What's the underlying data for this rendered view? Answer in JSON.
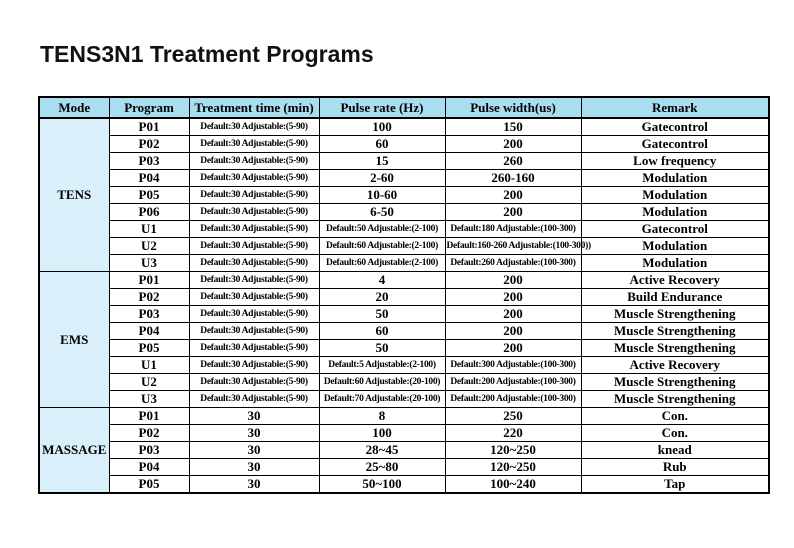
{
  "page": {
    "title": "TENS3N1 Treatment Programs"
  },
  "colors": {
    "header_bg": "#a9def1",
    "mode_bg": "#d9f0fa",
    "border": "#000000"
  },
  "table": {
    "headers": [
      "Mode",
      "Program",
      "Treatment time (min)",
      "Pulse rate (Hz)",
      "Pulse width(us)",
      "Remark"
    ],
    "sections": [
      {
        "mode": "TENS",
        "rows": [
          {
            "program": "P01",
            "time": "Default:30 Adjustable:(5-90)",
            "rate": "100",
            "width": "150",
            "remark": "Gatecontrol"
          },
          {
            "program": "P02",
            "time": "Default:30 Adjustable:(5-90)",
            "rate": "60",
            "width": "200",
            "remark": "Gatecontrol"
          },
          {
            "program": "P03",
            "time": "Default:30 Adjustable:(5-90)",
            "rate": "15",
            "width": "260",
            "remark": "Low frequency"
          },
          {
            "program": "P04",
            "time": "Default:30 Adjustable:(5-90)",
            "rate": "2-60",
            "width": "260-160",
            "remark": "Modulation"
          },
          {
            "program": "P05",
            "time": "Default:30 Adjustable:(5-90)",
            "rate": "10-60",
            "width": "200",
            "remark": "Modulation"
          },
          {
            "program": "P06",
            "time": "Default:30 Adjustable:(5-90)",
            "rate": "6-50",
            "width": "200",
            "remark": "Modulation"
          },
          {
            "program": "U1",
            "time": "Default:30 Adjustable:(5-90)",
            "rate": "Default:50 Adjustable:(2-100)",
            "width": "Default:180 Adjustable:(100-300)",
            "remark": "Gatecontrol"
          },
          {
            "program": "U2",
            "time": "Default:30 Adjustable:(5-90)",
            "rate": "Default:60 Adjustable:(2-100)",
            "width": "Default:160-260 Adjustable:(100-300))",
            "remark": "Modulation"
          },
          {
            "program": "U3",
            "time": "Default:30 Adjustable:(5-90)",
            "rate": "Default:60 Adjustable:(2-100)",
            "width": "Default:260 Adjustable:(100-300)",
            "remark": "Modulation"
          }
        ]
      },
      {
        "mode": "EMS",
        "rows": [
          {
            "program": "P01",
            "time": "Default:30 Adjustable:(5-90)",
            "rate": "4",
            "width": "200",
            "remark": "Active Recovery"
          },
          {
            "program": "P02",
            "time": "Default:30 Adjustable:(5-90)",
            "rate": "20",
            "width": "200",
            "remark": "Build Endurance"
          },
          {
            "program": "P03",
            "time": "Default:30 Adjustable:(5-90)",
            "rate": "50",
            "width": "200",
            "remark": "Muscle Strengthening"
          },
          {
            "program": "P04",
            "time": "Default:30 Adjustable:(5-90)",
            "rate": "60",
            "width": "200",
            "remark": "Muscle Strengthening"
          },
          {
            "program": "P05",
            "time": "Default:30 Adjustable:(5-90)",
            "rate": "50",
            "width": "200",
            "remark": "Muscle Strengthening"
          },
          {
            "program": "U1",
            "time": "Default:30 Adjustable:(5-90)",
            "rate": "Default:5 Adjustable:(2-100)",
            "width": "Default:300 Adjustable:(100-300)",
            "remark": "Active Recovery"
          },
          {
            "program": "U2",
            "time": "Default:30 Adjustable:(5-90)",
            "rate": "Default:60 Adjustable:(20-100)",
            "width": "Default:200 Adjustable:(100-300)",
            "remark": "Muscle Strengthening"
          },
          {
            "program": "U3",
            "time": "Default:30 Adjustable:(5-90)",
            "rate": "Default:70 Adjustable:(20-100)",
            "width": "Default:200 Adjustable:(100-300)",
            "remark": "Muscle Strengthening"
          }
        ]
      },
      {
        "mode": "MASSAGE",
        "rows": [
          {
            "program": "P01",
            "time": "30",
            "rate": "8",
            "width": "250",
            "remark": "Con."
          },
          {
            "program": "P02",
            "time": "30",
            "rate": "100",
            "width": "220",
            "remark": "Con."
          },
          {
            "program": "P03",
            "time": "30",
            "rate": "28~45",
            "width": "120~250",
            "remark": "knead"
          },
          {
            "program": "P04",
            "time": "30",
            "rate": "25~80",
            "width": "120~250",
            "remark": "Rub"
          },
          {
            "program": "P05",
            "time": "30",
            "rate": "50~100",
            "width": "100~240",
            "remark": "Tap"
          }
        ]
      }
    ]
  }
}
